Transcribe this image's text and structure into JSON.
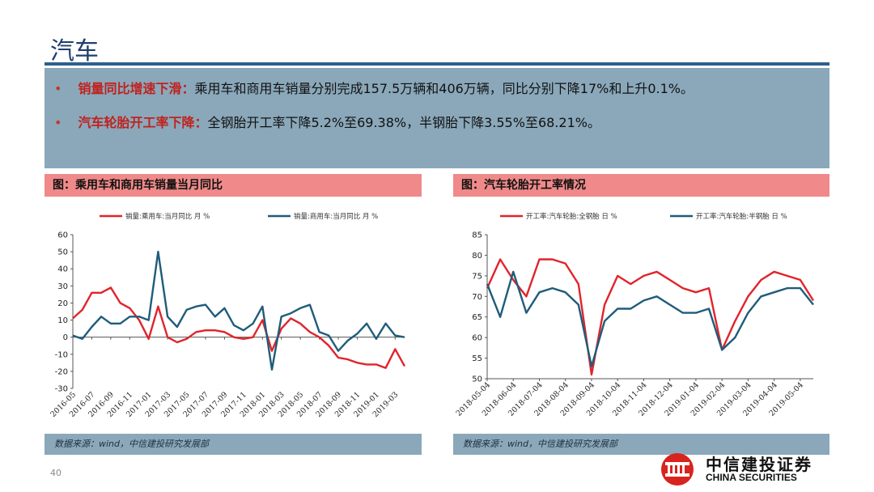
{
  "header": {
    "title": "汽车"
  },
  "summary": [
    {
      "key": "销量同比增速下滑：",
      "text": "乘用车和商用车销量分别完成157.5万辆和406万辆，同比分别下降17%和上升0.1%。"
    },
    {
      "key": "汽车轮胎开工率下降：",
      "text": "全钢胎开工率下降5.2%至69.38%，半钢胎下降3.55%至68.21%。"
    }
  ],
  "left_panel": {
    "heading": "图：乘用车和商用车销量当月同比",
    "source": "数据来源：wind，中信建投研究发展部"
  },
  "right_panel": {
    "heading": "图：汽车轮胎开工率情况",
    "source": "数据来源：wind，中信建投研究发展部"
  },
  "footer": {
    "page_number": "40",
    "logo_cn": "中信建投证券",
    "logo_en": "CHINA SECURITIES"
  },
  "colors": {
    "red": "#e0242b",
    "navy": "#1f5c7a",
    "summary_bg": "#8aa8ba",
    "heading_bg": "#f08a8a"
  },
  "chart_data": [
    {
      "type": "line",
      "title": "",
      "ylim": [
        -30,
        60
      ],
      "yticks": [
        -30,
        -20,
        -10,
        0,
        10,
        20,
        30,
        40,
        50,
        60
      ],
      "x": [
        "2016-05",
        "2016-06",
        "2016-07",
        "2016-08",
        "2016-09",
        "2016-10",
        "2016-11",
        "2016-12",
        "2017-01",
        "2017-02",
        "2017-03",
        "2017-04",
        "2017-05",
        "2017-06",
        "2017-07",
        "2017-08",
        "2017-09",
        "2017-10",
        "2017-11",
        "2017-12",
        "2018-01",
        "2018-02",
        "2018-03",
        "2018-04",
        "2018-05",
        "2018-06",
        "2018-07",
        "2018-08",
        "2018-09",
        "2018-10",
        "2018-11",
        "2018-12",
        "2019-01",
        "2019-02",
        "2019-03",
        "2019-04"
      ],
      "xtick_labels": [
        "2016-05",
        "2016-07",
        "2016-09",
        "2016-11",
        "2017-01",
        "2017-03",
        "2017-05",
        "2017-07",
        "2017-09",
        "2017-11",
        "2018-01",
        "2018-03",
        "2018-05",
        "2018-07",
        "2018-09",
        "2018-11",
        "2019-01",
        "2019-03"
      ],
      "series": [
        {
          "name": "销量:乘用车:当月同比 月 %",
          "color": "#e0242b",
          "values": [
            11,
            16,
            26,
            26,
            29,
            20,
            17,
            10,
            -1,
            18,
            0,
            -3,
            -1,
            3,
            4,
            4,
            3,
            0,
            -1,
            0,
            10,
            -8,
            5,
            11,
            8,
            3,
            0,
            -5,
            -12,
            -13,
            -15,
            -16,
            -16,
            -18,
            -7,
            -17
          ]
        },
        {
          "name": "销量:商用车:当月同比 月 %",
          "color": "#1f5c7a",
          "values": [
            1,
            -1,
            6,
            12,
            8,
            8,
            12,
            12,
            10,
            50,
            12,
            6,
            16,
            18,
            19,
            12,
            17,
            7,
            4,
            8,
            18,
            -19,
            12,
            14,
            17,
            19,
            3,
            1,
            -8,
            -2,
            2,
            8,
            -1,
            8,
            1,
            0
          ]
        }
      ]
    },
    {
      "type": "line",
      "title": "",
      "ylim": [
        50,
        85
      ],
      "yticks": [
        50,
        55,
        60,
        65,
        70,
        75,
        80,
        85
      ],
      "x": [
        "2018-05-04",
        "2018-05-18",
        "2018-06-04",
        "2018-06-18",
        "2018-07-04",
        "2018-07-18",
        "2018-08-04",
        "2018-08-18",
        "2018-09-04",
        "2018-09-18",
        "2018-10-04",
        "2018-10-18",
        "2018-11-04",
        "2018-11-18",
        "2018-12-04",
        "2018-12-18",
        "2019-01-04",
        "2019-01-18",
        "2019-02-04",
        "2019-02-18",
        "2019-03-04",
        "2019-03-18",
        "2019-04-04",
        "2019-04-18",
        "2019-05-04",
        "2019-05-18"
      ],
      "xtick_labels": [
        "2018-05-04",
        "2018-06-04",
        "2018-07-04",
        "2018-08-04",
        "2018-09-04",
        "2018-10-04",
        "2018-11-04",
        "2018-12-04",
        "2019-01-04",
        "2019-02-04",
        "2019-03-04",
        "2019-04-04",
        "2019-05-04"
      ],
      "series": [
        {
          "name": "开工率:汽车轮胎:全钢胎 日 %",
          "color": "#e0242b",
          "values": [
            72,
            79,
            74,
            70,
            79,
            79,
            78,
            73,
            51,
            68,
            75,
            73,
            75,
            76,
            74,
            72,
            71,
            72,
            57,
            64,
            70,
            74,
            76,
            75,
            74,
            69
          ]
        },
        {
          "name": "开工率:汽车轮胎:半钢胎 日 %",
          "color": "#1f5c7a",
          "values": [
            73,
            65,
            76,
            66,
            71,
            72,
            71,
            68,
            53,
            64,
            67,
            67,
            69,
            70,
            68,
            66,
            66,
            67,
            57,
            60,
            66,
            70,
            71,
            72,
            72,
            68
          ]
        }
      ]
    }
  ]
}
